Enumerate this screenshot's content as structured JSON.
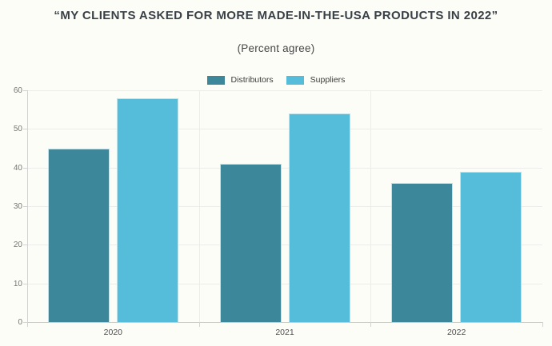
{
  "header": {
    "title": "“MY CLIENTS ASKED FOR MORE MADE-IN-THE-USA PRODUCTS IN 2022”",
    "subtitle": "(Percent agree)"
  },
  "chart_data": {
    "type": "bar",
    "title": "“MY CLIENTS ASKED FOR MORE MADE-IN-THE-USA PRODUCTS IN 2022”",
    "subtitle": "(Percent agree)",
    "categories": [
      "2020",
      "2021",
      "2022"
    ],
    "series": [
      {
        "name": "Distributors",
        "color": "#3c8799",
        "values": [
          45,
          41,
          36
        ]
      },
      {
        "name": "Suppliers",
        "color": "#55bdd9",
        "values": [
          58,
          54,
          39
        ]
      }
    ],
    "xlabel": "",
    "ylabel": "",
    "ylim": [
      0,
      60
    ],
    "yticks": [
      0,
      10,
      20,
      30,
      40,
      50,
      60
    ],
    "grid": true,
    "legend_position": "top"
  },
  "colors": {
    "background": "#fdfdf8",
    "distributors_bar": "#3c8799",
    "suppliers_bar": "#55bdd9",
    "bar_border": "#bfe3ed",
    "grid": "#ececec",
    "axis": "#d2d2d2",
    "tick_label": "#757575",
    "category_label": "#4d4d4d",
    "title_text": "#383f45"
  }
}
